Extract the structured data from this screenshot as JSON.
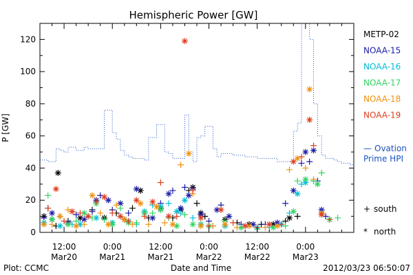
{
  "chart_data": {
    "type": "scatter",
    "title": "Hemispheric Power [GW]",
    "ylabel": "P [GW]",
    "xlabel": "Date and Time",
    "ylim": [
      0,
      130
    ],
    "xlim": [
      0,
      78
    ],
    "yticks": [
      0,
      20,
      40,
      60,
      80,
      100,
      120
    ],
    "x_ticks": [
      {
        "x": 6,
        "time": "12:00",
        "date": "Mar20"
      },
      {
        "x": 18,
        "time": "0:00",
        "date": "Mar21"
      },
      {
        "x": 30,
        "time": "12:00",
        "date": "Mar21"
      },
      {
        "x": 42,
        "time": "0:00",
        "date": "Mar22"
      },
      {
        "x": 54,
        "time": "12:00",
        "date": "Mar22"
      },
      {
        "x": 66,
        "time": "0:00",
        "date": "Mar23"
      }
    ],
    "footer_left": "Plot: CCMC",
    "footer_right": "2012/03/23 06:50:07",
    "marker_legend": [
      {
        "symbol": "+",
        "label": "south"
      },
      {
        "symbol": "*",
        "label": "north"
      }
    ],
    "series": [
      {
        "name": "METP-02",
        "color": "#000000",
        "points": [
          [
            1,
            10
          ],
          [
            2,
            15
          ],
          [
            3,
            8
          ],
          [
            4,
            4
          ],
          [
            4.5,
            37
          ],
          [
            7,
            7
          ],
          [
            10,
            9
          ],
          [
            13,
            14
          ],
          [
            16,
            9
          ],
          [
            19,
            12
          ],
          [
            21,
            8
          ],
          [
            23,
            15
          ],
          [
            25,
            26
          ],
          [
            27,
            9
          ],
          [
            30,
            15
          ],
          [
            33,
            9
          ],
          [
            35,
            14
          ],
          [
            37,
            26
          ],
          [
            38,
            28
          ],
          [
            39,
            18
          ],
          [
            40,
            12
          ],
          [
            41,
            10
          ],
          [
            46,
            8
          ],
          [
            49,
            6
          ],
          [
            52,
            5
          ],
          [
            55,
            5
          ],
          [
            58,
            5
          ],
          [
            61,
            7
          ],
          [
            62,
            9
          ],
          [
            64,
            10
          ]
        ]
      },
      {
        "name": "NOAA-15",
        "color": "#1a1aa8",
        "points": [
          [
            1,
            9
          ],
          [
            3,
            12
          ],
          [
            5,
            10
          ],
          [
            7,
            6
          ],
          [
            9,
            11
          ],
          [
            11,
            8
          ],
          [
            13,
            13
          ],
          [
            14,
            20
          ],
          [
            15,
            23
          ],
          [
            17,
            20
          ],
          [
            18,
            14
          ],
          [
            20,
            18
          ],
          [
            22,
            12
          ],
          [
            24,
            27
          ],
          [
            26,
            12
          ],
          [
            28,
            9
          ],
          [
            30,
            18
          ],
          [
            32,
            24
          ],
          [
            33,
            26
          ],
          [
            35,
            15
          ],
          [
            36,
            28
          ],
          [
            37,
            23
          ],
          [
            38,
            27
          ],
          [
            40,
            11
          ],
          [
            42,
            7
          ],
          [
            44,
            14
          ],
          [
            45,
            17
          ],
          [
            47,
            10
          ],
          [
            50,
            5
          ],
          [
            53,
            5
          ],
          [
            56,
            5
          ],
          [
            59,
            6
          ],
          [
            61,
            18
          ],
          [
            63,
            26
          ],
          [
            65,
            43
          ],
          [
            66,
            50
          ],
          [
            67,
            44
          ],
          [
            68,
            51
          ],
          [
            69,
            32
          ],
          [
            70,
            14
          ],
          [
            71,
            10
          ]
        ]
      },
      {
        "name": "NOAA-16",
        "color": "#00bcd4",
        "points": [
          [
            1,
            6
          ],
          [
            3,
            8
          ],
          [
            5,
            4
          ],
          [
            8,
            5
          ],
          [
            10,
            5
          ],
          [
            12,
            10
          ],
          [
            14,
            9
          ],
          [
            16,
            8
          ],
          [
            18,
            6
          ],
          [
            20,
            10
          ],
          [
            22,
            7
          ],
          [
            24,
            5
          ],
          [
            26,
            13
          ],
          [
            28,
            17
          ],
          [
            30,
            16
          ],
          [
            32,
            18
          ],
          [
            34,
            13
          ],
          [
            35,
            12
          ],
          [
            36,
            20
          ],
          [
            38,
            9
          ],
          [
            40,
            5
          ],
          [
            43,
            4
          ],
          [
            46,
            4
          ],
          [
            50,
            3
          ],
          [
            54,
            3
          ],
          [
            57,
            3
          ],
          [
            60,
            5
          ],
          [
            62,
            12
          ],
          [
            64,
            24
          ],
          [
            65,
            30
          ],
          [
            66,
            31
          ],
          [
            68,
            32
          ],
          [
            70,
            12
          ]
        ]
      },
      {
        "name": "NOAA-17",
        "color": "#2fd460",
        "points": [
          [
            2,
            23
          ],
          [
            3,
            8
          ],
          [
            5,
            10
          ],
          [
            7,
            5
          ],
          [
            9,
            7
          ],
          [
            11,
            12
          ],
          [
            13,
            9
          ],
          [
            14,
            18
          ],
          [
            16,
            8
          ],
          [
            18,
            5
          ],
          [
            20,
            15
          ],
          [
            22,
            6
          ],
          [
            24,
            6
          ],
          [
            26,
            12
          ],
          [
            28,
            12
          ],
          [
            30,
            14
          ],
          [
            32,
            9
          ],
          [
            34,
            4
          ],
          [
            36,
            11
          ],
          [
            38,
            5
          ],
          [
            40,
            5
          ],
          [
            42,
            4
          ],
          [
            46,
            7
          ],
          [
            50,
            3
          ],
          [
            54,
            2
          ],
          [
            58,
            3
          ],
          [
            61,
            4
          ],
          [
            63,
            13
          ],
          [
            64,
            32
          ],
          [
            66,
            33
          ],
          [
            68,
            32
          ],
          [
            69,
            30
          ],
          [
            70,
            37
          ],
          [
            72,
            8
          ],
          [
            74,
            9
          ]
        ]
      },
      {
        "name": "NOAA-18",
        "color": "#f0900c",
        "points": [
          [
            1,
            5
          ],
          [
            3,
            5
          ],
          [
            5,
            10
          ],
          [
            7,
            14
          ],
          [
            9,
            4
          ],
          [
            11,
            5
          ],
          [
            13,
            23
          ],
          [
            15,
            12
          ],
          [
            17,
            5
          ],
          [
            19,
            17
          ],
          [
            21,
            8
          ],
          [
            23,
            5
          ],
          [
            25,
            18
          ],
          [
            27,
            5
          ],
          [
            29,
            16
          ],
          [
            31,
            6
          ],
          [
            33,
            5
          ],
          [
            35,
            42
          ],
          [
            37,
            49
          ],
          [
            38,
            24
          ],
          [
            40,
            4
          ],
          [
            43,
            4
          ],
          [
            46,
            5
          ],
          [
            49,
            3
          ],
          [
            52,
            4
          ],
          [
            56,
            3
          ],
          [
            59,
            4
          ],
          [
            62,
            39
          ],
          [
            64,
            46
          ],
          [
            66,
            40
          ],
          [
            67,
            89
          ],
          [
            68,
            33
          ],
          [
            70,
            12
          ]
        ]
      },
      {
        "name": "NOAA-19",
        "color": "#e03c1c",
        "points": [
          [
            2,
            15
          ],
          [
            4,
            27
          ],
          [
            6,
            7
          ],
          [
            8,
            13
          ],
          [
            10,
            12
          ],
          [
            12,
            10
          ],
          [
            14,
            19
          ],
          [
            16,
            22
          ],
          [
            18,
            12
          ],
          [
            20,
            10
          ],
          [
            22,
            7
          ],
          [
            24,
            20
          ],
          [
            26,
            10
          ],
          [
            28,
            19
          ],
          [
            30,
            31
          ],
          [
            32,
            10
          ],
          [
            34,
            10
          ],
          [
            36,
            119
          ],
          [
            38,
            26
          ],
          [
            40,
            9
          ],
          [
            42,
            4
          ],
          [
            45,
            14
          ],
          [
            48,
            6
          ],
          [
            51,
            4
          ],
          [
            54,
            3
          ],
          [
            57,
            5
          ],
          [
            60,
            5
          ],
          [
            63,
            44
          ],
          [
            65,
            47
          ],
          [
            67,
            70
          ],
          [
            68,
            54
          ],
          [
            70,
            11
          ],
          [
            72,
            8
          ]
        ]
      }
    ],
    "ovation": {
      "name_line1": "Ovation",
      "name_line2": "Prime HPI",
      "legend_dash": "—",
      "color": "#1a52c4",
      "points": [
        [
          0,
          45
        ],
        [
          1,
          45
        ],
        [
          2,
          44
        ],
        [
          3,
          44
        ],
        [
          4,
          52
        ],
        [
          5,
          51
        ],
        [
          6,
          50
        ],
        [
          7,
          53
        ],
        [
          8,
          53
        ],
        [
          9,
          51
        ],
        [
          10,
          51
        ],
        [
          11,
          53
        ],
        [
          12,
          52
        ],
        [
          13,
          52
        ],
        [
          14,
          52
        ],
        [
          15,
          52
        ],
        [
          16,
          76
        ],
        [
          17,
          76
        ],
        [
          18,
          62
        ],
        [
          19,
          58
        ],
        [
          20,
          51
        ],
        [
          21,
          48
        ],
        [
          22,
          47
        ],
        [
          23,
          46
        ],
        [
          24,
          46
        ],
        [
          25,
          46
        ],
        [
          26,
          45
        ],
        [
          27,
          59
        ],
        [
          28,
          59
        ],
        [
          29,
          67
        ],
        [
          30,
          67
        ],
        [
          31,
          50
        ],
        [
          32,
          49
        ],
        [
          33,
          46
        ],
        [
          34,
          46
        ],
        [
          35,
          46
        ],
        [
          36,
          73
        ],
        [
          37,
          50
        ],
        [
          38,
          44
        ],
        [
          39,
          59
        ],
        [
          40,
          60
        ],
        [
          41,
          66
        ],
        [
          42,
          66
        ],
        [
          43,
          52
        ],
        [
          44,
          47
        ],
        [
          45,
          49
        ],
        [
          46,
          49
        ],
        [
          47,
          49
        ],
        [
          48,
          48
        ],
        [
          49,
          48
        ],
        [
          50,
          48
        ],
        [
          51,
          47
        ],
        [
          52,
          47
        ],
        [
          53,
          47
        ],
        [
          54,
          46
        ],
        [
          55,
          46
        ],
        [
          56,
          46
        ],
        [
          57,
          46
        ],
        [
          58,
          46
        ],
        [
          59,
          44
        ],
        [
          60,
          44
        ],
        [
          61,
          44
        ],
        [
          62,
          44
        ],
        [
          63,
          63
        ],
        [
          64,
          68
        ],
        [
          65,
          130
        ],
        [
          66,
          130
        ],
        [
          67,
          120
        ],
        [
          68,
          80
        ],
        [
          69,
          60
        ],
        [
          70,
          48
        ],
        [
          71,
          46
        ],
        [
          72,
          46
        ],
        [
          73,
          45
        ],
        [
          74,
          44
        ],
        [
          75,
          43
        ],
        [
          76,
          43
        ],
        [
          77,
          42
        ],
        [
          78,
          42
        ]
      ]
    }
  }
}
